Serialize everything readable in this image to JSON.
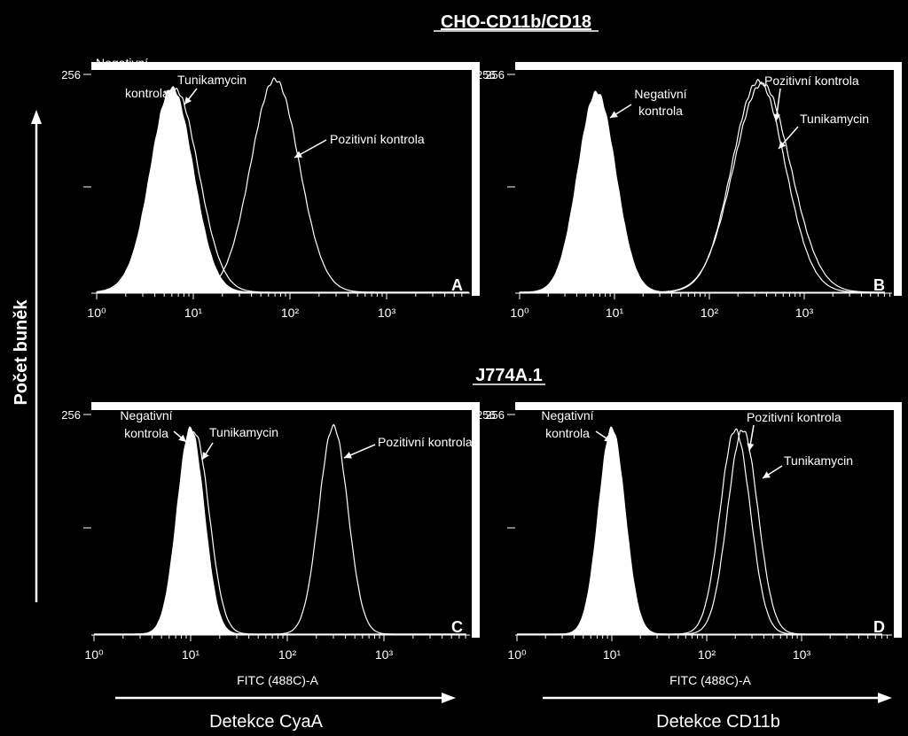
{
  "headings": {
    "top_group": "CHO-CD11b/CD18",
    "bottom_group": "J774A.1"
  },
  "ylabel": "Počet buněk",
  "xlabel_small": "FITC (488C)-A",
  "xlabel_left": "Detekce CyaA",
  "xlabel_right": "Detekce CD11b",
  "colors": {
    "background": "#000000",
    "line": "#ffffff",
    "fill": "#ffffff"
  },
  "chart_data": [
    {
      "type": "area",
      "panel": "A",
      "group": "CHO-CD11b/CD18",
      "x_scale": "log",
      "xlim": [
        1,
        7000
      ],
      "ylim": [
        0,
        256
      ],
      "xticks": [
        "10⁰",
        "10¹",
        "10²",
        "10³"
      ],
      "yticks": [
        "256"
      ],
      "series": [
        {
          "name": "Negativní kontrola",
          "style": "filled",
          "peak_x": 6,
          "peak_y": 240,
          "sigma_decades": 0.22
        },
        {
          "name": "Tunikamycin",
          "style": "line",
          "peak_x": 6.5,
          "peak_y": 238,
          "sigma_decades": 0.24
        },
        {
          "name": "Pozitivní kontrola",
          "style": "line",
          "peak_x": 70,
          "peak_y": 250,
          "sigma_decades": 0.25
        }
      ],
      "annotations": [
        "Negativní",
        "kontrola",
        "Tunikamycin",
        "Pozitivní kontrola"
      ]
    },
    {
      "type": "area",
      "panel": "B",
      "group": "CHO-CD11b/CD18",
      "x_scale": "log",
      "xlim": [
        1,
        7000
      ],
      "ylim": [
        0,
        256
      ],
      "xticks": [
        "10⁰",
        "10¹",
        "10²",
        "10³"
      ],
      "yticks": [
        "256"
      ],
      "series": [
        {
          "name": "Negativní kontrola",
          "style": "filled",
          "peak_x": 6.5,
          "peak_y": 235,
          "sigma_decades": 0.2
        },
        {
          "name": "Pozitivní kontrola",
          "style": "line",
          "peak_x": 330,
          "peak_y": 248,
          "sigma_decades": 0.28
        },
        {
          "name": "Tunikamycin",
          "style": "line",
          "peak_x": 360,
          "peak_y": 245,
          "sigma_decades": 0.3
        }
      ],
      "annotations": [
        "Negativní",
        "kontrola",
        "Pozitivní kontrola",
        "Tunikamycin"
      ]
    },
    {
      "type": "area",
      "panel": "C",
      "group": "J774A.1",
      "x_scale": "log",
      "xlim": [
        1,
        7000
      ],
      "ylim": [
        0,
        256
      ],
      "xticks": [
        "10⁰",
        "10¹",
        "10²",
        "10³"
      ],
      "yticks": [
        "256"
      ],
      "series": [
        {
          "name": "Negativní kontrola",
          "style": "filled",
          "peak_x": 10,
          "peak_y": 240,
          "sigma_decades": 0.14
        },
        {
          "name": "Tunikamycin",
          "style": "line",
          "peak_x": 11,
          "peak_y": 235,
          "sigma_decades": 0.15
        },
        {
          "name": "Pozitivní kontrola",
          "style": "line",
          "peak_x": 300,
          "peak_y": 242,
          "sigma_decades": 0.15
        }
      ],
      "annotations": [
        "Negativní",
        "kontrola",
        "Tunikamycin",
        "Pozitivní kontrola"
      ]
    },
    {
      "type": "area",
      "panel": "D",
      "group": "J774A.1",
      "x_scale": "log",
      "xlim": [
        1,
        7000
      ],
      "ylim": [
        0,
        256
      ],
      "xticks": [
        "10⁰",
        "10¹",
        "10²",
        "10³"
      ],
      "yticks": [
        "256"
      ],
      "series": [
        {
          "name": "Negativní kontrola",
          "style": "filled",
          "peak_x": 10,
          "peak_y": 240,
          "sigma_decades": 0.14
        },
        {
          "name": "Pozitivní kontrola",
          "style": "line",
          "peak_x": 200,
          "peak_y": 238,
          "sigma_decades": 0.16
        },
        {
          "name": "Tunikamycin",
          "style": "line",
          "peak_x": 240,
          "peak_y": 238,
          "sigma_decades": 0.16
        }
      ],
      "annotations": [
        "Negativní",
        "kontrola",
        "Pozitivní kontrola",
        "Tunikamycin"
      ]
    }
  ]
}
